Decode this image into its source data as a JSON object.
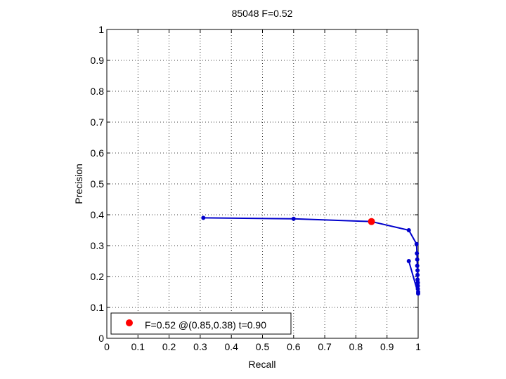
{
  "chart_data": {
    "type": "line",
    "title": "85048 F=0.52",
    "xlabel": "Recall",
    "ylabel": "Precision",
    "xlim": [
      0,
      1
    ],
    "ylim": [
      0,
      1
    ],
    "xticks": [
      "0",
      "0.1",
      "0.2",
      "0.3",
      "0.4",
      "0.5",
      "0.6",
      "0.7",
      "0.8",
      "0.9",
      "1"
    ],
    "yticks": [
      "0",
      "0.1",
      "0.2",
      "0.3",
      "0.4",
      "0.5",
      "0.6",
      "0.7",
      "0.8",
      "0.9",
      "1"
    ],
    "grid": true,
    "grid_style": "dotted",
    "series": [
      {
        "color": "#0000cc",
        "x": [
          0.31,
          0.6,
          0.85,
          0.97,
          0.995,
          0.996,
          0.997,
          0.997,
          0.998,
          0.998,
          0.998,
          0.999,
          0.999,
          0.999,
          1.0,
          1.0,
          0.97
        ],
        "y": [
          0.39,
          0.387,
          0.378,
          0.35,
          0.305,
          0.275,
          0.255,
          0.235,
          0.22,
          0.205,
          0.19,
          0.18,
          0.17,
          0.16,
          0.15,
          0.145,
          0.25
        ]
      }
    ],
    "best_point": {
      "color": "#ff0000",
      "x": 0.85,
      "y": 0.378
    },
    "legend": {
      "position": "bottom-left",
      "entries": [
        {
          "label": "F=0.52 @(0.85,0.38) t=0.90",
          "color": "#ff0000"
        }
      ]
    }
  }
}
